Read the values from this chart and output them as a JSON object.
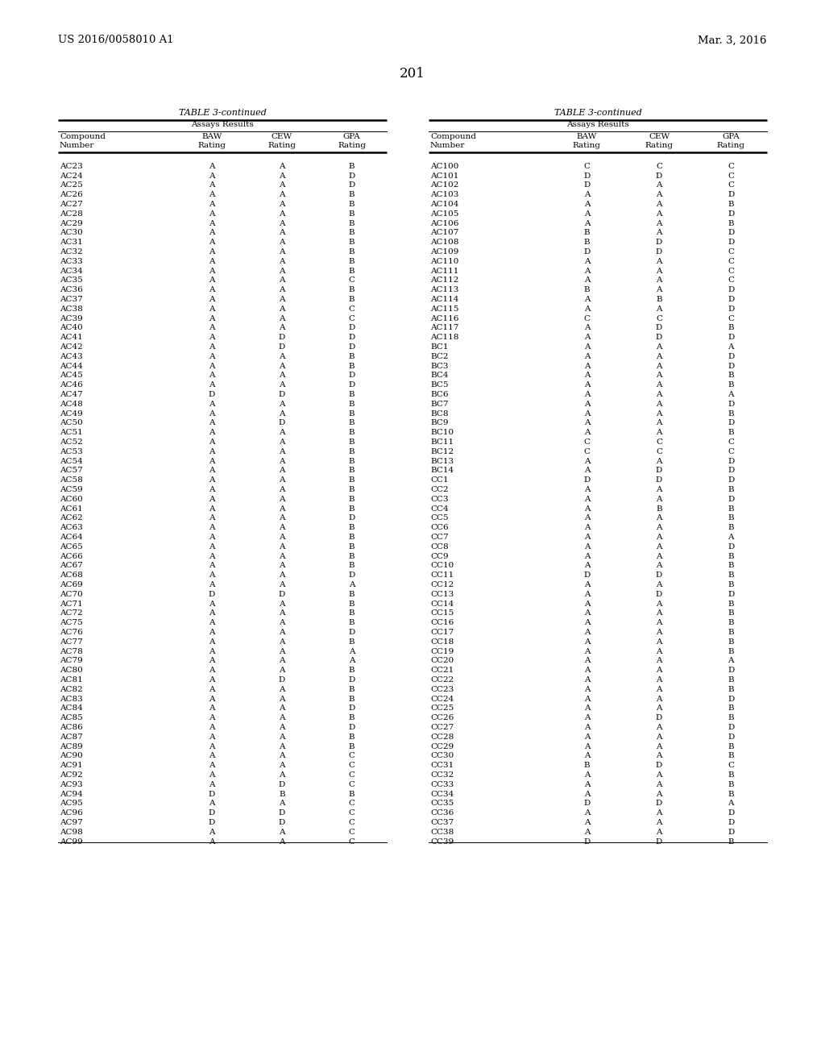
{
  "header_left": "US 2016/0058010 A1",
  "header_right": "Mar. 3, 2016",
  "page_number": "201",
  "table_title": "TABLE 3-continued",
  "col_headers": [
    "Compound\nNumber",
    "BAW\nRating",
    "CEW\nRating",
    "GPA\nRating"
  ],
  "assays_results": "Assays Results",
  "left_data": [
    [
      "AC23",
      "A",
      "A",
      "B"
    ],
    [
      "AC24",
      "A",
      "A",
      "D"
    ],
    [
      "AC25",
      "A",
      "A",
      "D"
    ],
    [
      "AC26",
      "A",
      "A",
      "B"
    ],
    [
      "AC27",
      "A",
      "A",
      "B"
    ],
    [
      "AC28",
      "A",
      "A",
      "B"
    ],
    [
      "AC29",
      "A",
      "A",
      "B"
    ],
    [
      "AC30",
      "A",
      "A",
      "B"
    ],
    [
      "AC31",
      "A",
      "A",
      "B"
    ],
    [
      "AC32",
      "A",
      "A",
      "B"
    ],
    [
      "AC33",
      "A",
      "A",
      "B"
    ],
    [
      "AC34",
      "A",
      "A",
      "B"
    ],
    [
      "AC35",
      "A",
      "A",
      "C"
    ],
    [
      "AC36",
      "A",
      "A",
      "B"
    ],
    [
      "AC37",
      "A",
      "A",
      "B"
    ],
    [
      "AC38",
      "A",
      "A",
      "C"
    ],
    [
      "AC39",
      "A",
      "A",
      "C"
    ],
    [
      "AC40",
      "A",
      "A",
      "D"
    ],
    [
      "AC41",
      "A",
      "D",
      "D"
    ],
    [
      "AC42",
      "A",
      "D",
      "D"
    ],
    [
      "AC43",
      "A",
      "A",
      "B"
    ],
    [
      "AC44",
      "A",
      "A",
      "B"
    ],
    [
      "AC45",
      "A",
      "A",
      "D"
    ],
    [
      "AC46",
      "A",
      "A",
      "D"
    ],
    [
      "AC47",
      "D",
      "D",
      "B"
    ],
    [
      "AC48",
      "A",
      "A",
      "B"
    ],
    [
      "AC49",
      "A",
      "A",
      "B"
    ],
    [
      "AC50",
      "A",
      "D",
      "B"
    ],
    [
      "AC51",
      "A",
      "A",
      "B"
    ],
    [
      "AC52",
      "A",
      "A",
      "B"
    ],
    [
      "AC53",
      "A",
      "A",
      "B"
    ],
    [
      "AC54",
      "A",
      "A",
      "B"
    ],
    [
      "AC57",
      "A",
      "A",
      "B"
    ],
    [
      "AC58",
      "A",
      "A",
      "B"
    ],
    [
      "AC59",
      "A",
      "A",
      "B"
    ],
    [
      "AC60",
      "A",
      "A",
      "B"
    ],
    [
      "AC61",
      "A",
      "A",
      "B"
    ],
    [
      "AC62",
      "A",
      "A",
      "D"
    ],
    [
      "AC63",
      "A",
      "A",
      "B"
    ],
    [
      "AC64",
      "A",
      "A",
      "B"
    ],
    [
      "AC65",
      "A",
      "A",
      "B"
    ],
    [
      "AC66",
      "A",
      "A",
      "B"
    ],
    [
      "AC67",
      "A",
      "A",
      "B"
    ],
    [
      "AC68",
      "A",
      "A",
      "D"
    ],
    [
      "AC69",
      "A",
      "A",
      "A"
    ],
    [
      "AC70",
      "D",
      "D",
      "B"
    ],
    [
      "AC71",
      "A",
      "A",
      "B"
    ],
    [
      "AC72",
      "A",
      "A",
      "B"
    ],
    [
      "AC75",
      "A",
      "A",
      "B"
    ],
    [
      "AC76",
      "A",
      "A",
      "D"
    ],
    [
      "AC77",
      "A",
      "A",
      "B"
    ],
    [
      "AC78",
      "A",
      "A",
      "A"
    ],
    [
      "AC79",
      "A",
      "A",
      "A"
    ],
    [
      "AC80",
      "A",
      "A",
      "B"
    ],
    [
      "AC81",
      "A",
      "D",
      "D"
    ],
    [
      "AC82",
      "A",
      "A",
      "B"
    ],
    [
      "AC83",
      "A",
      "A",
      "B"
    ],
    [
      "AC84",
      "A",
      "A",
      "D"
    ],
    [
      "AC85",
      "A",
      "A",
      "B"
    ],
    [
      "AC86",
      "A",
      "A",
      "D"
    ],
    [
      "AC87",
      "A",
      "A",
      "B"
    ],
    [
      "AC89",
      "A",
      "A",
      "B"
    ],
    [
      "AC90",
      "A",
      "A",
      "C"
    ],
    [
      "AC91",
      "A",
      "A",
      "C"
    ],
    [
      "AC92",
      "A",
      "A",
      "C"
    ],
    [
      "AC93",
      "A",
      "D",
      "C"
    ],
    [
      "AC94",
      "D",
      "B",
      "B"
    ],
    [
      "AC95",
      "A",
      "A",
      "C"
    ],
    [
      "AC96",
      "D",
      "D",
      "C"
    ],
    [
      "AC97",
      "D",
      "D",
      "C"
    ],
    [
      "AC98",
      "A",
      "A",
      "C"
    ],
    [
      "AC99",
      "A",
      "A",
      "C"
    ]
  ],
  "right_data": [
    [
      "AC100",
      "C",
      "C",
      "C"
    ],
    [
      "AC101",
      "D",
      "D",
      "C"
    ],
    [
      "AC102",
      "D",
      "A",
      "C"
    ],
    [
      "AC103",
      "A",
      "A",
      "D"
    ],
    [
      "AC104",
      "A",
      "A",
      "B"
    ],
    [
      "AC105",
      "A",
      "A",
      "D"
    ],
    [
      "AC106",
      "A",
      "A",
      "B"
    ],
    [
      "AC107",
      "B",
      "A",
      "D"
    ],
    [
      "AC108",
      "B",
      "D",
      "D"
    ],
    [
      "AC109",
      "D",
      "D",
      "C"
    ],
    [
      "AC110",
      "A",
      "A",
      "C"
    ],
    [
      "AC111",
      "A",
      "A",
      "C"
    ],
    [
      "AC112",
      "A",
      "A",
      "C"
    ],
    [
      "AC113",
      "B",
      "A",
      "D"
    ],
    [
      "AC114",
      "A",
      "B",
      "D"
    ],
    [
      "AC115",
      "A",
      "A",
      "D"
    ],
    [
      "AC116",
      "C",
      "C",
      "C"
    ],
    [
      "AC117",
      "A",
      "D",
      "B"
    ],
    [
      "AC118",
      "A",
      "D",
      "D"
    ],
    [
      "BC1",
      "A",
      "A",
      "A"
    ],
    [
      "BC2",
      "A",
      "A",
      "D"
    ],
    [
      "BC3",
      "A",
      "A",
      "D"
    ],
    [
      "BC4",
      "A",
      "A",
      "B"
    ],
    [
      "BC5",
      "A",
      "A",
      "B"
    ],
    [
      "BC6",
      "A",
      "A",
      "A"
    ],
    [
      "BC7",
      "A",
      "A",
      "D"
    ],
    [
      "BC8",
      "A",
      "A",
      "B"
    ],
    [
      "BC9",
      "A",
      "A",
      "D"
    ],
    [
      "BC10",
      "A",
      "A",
      "B"
    ],
    [
      "BC11",
      "C",
      "C",
      "C"
    ],
    [
      "BC12",
      "C",
      "C",
      "C"
    ],
    [
      "BC13",
      "A",
      "A",
      "D"
    ],
    [
      "BC14",
      "A",
      "D",
      "D"
    ],
    [
      "CC1",
      "D",
      "D",
      "D"
    ],
    [
      "CC2",
      "A",
      "A",
      "B"
    ],
    [
      "CC3",
      "A",
      "A",
      "D"
    ],
    [
      "CC4",
      "A",
      "B",
      "B"
    ],
    [
      "CC5",
      "A",
      "A",
      "B"
    ],
    [
      "CC6",
      "A",
      "A",
      "B"
    ],
    [
      "CC7",
      "A",
      "A",
      "A"
    ],
    [
      "CC8",
      "A",
      "A",
      "D"
    ],
    [
      "CC9",
      "A",
      "A",
      "B"
    ],
    [
      "CC10",
      "A",
      "A",
      "B"
    ],
    [
      "CC11",
      "D",
      "D",
      "B"
    ],
    [
      "CC12",
      "A",
      "A",
      "B"
    ],
    [
      "CC13",
      "A",
      "D",
      "D"
    ],
    [
      "CC14",
      "A",
      "A",
      "B"
    ],
    [
      "CC15",
      "A",
      "A",
      "B"
    ],
    [
      "CC16",
      "A",
      "A",
      "B"
    ],
    [
      "CC17",
      "A",
      "A",
      "B"
    ],
    [
      "CC18",
      "A",
      "A",
      "B"
    ],
    [
      "CC19",
      "A",
      "A",
      "B"
    ],
    [
      "CC20",
      "A",
      "A",
      "A"
    ],
    [
      "CC21",
      "A",
      "A",
      "D"
    ],
    [
      "CC22",
      "A",
      "A",
      "B"
    ],
    [
      "CC23",
      "A",
      "A",
      "B"
    ],
    [
      "CC24",
      "A",
      "A",
      "D"
    ],
    [
      "CC25",
      "A",
      "A",
      "B"
    ],
    [
      "CC26",
      "A",
      "D",
      "B"
    ],
    [
      "CC27",
      "A",
      "A",
      "D"
    ],
    [
      "CC28",
      "A",
      "A",
      "D"
    ],
    [
      "CC29",
      "A",
      "A",
      "B"
    ],
    [
      "CC30",
      "A",
      "A",
      "B"
    ],
    [
      "CC31",
      "B",
      "D",
      "C"
    ],
    [
      "CC32",
      "A",
      "A",
      "B"
    ],
    [
      "CC33",
      "A",
      "A",
      "B"
    ],
    [
      "CC34",
      "A",
      "A",
      "B"
    ],
    [
      "CC35",
      "D",
      "D",
      "A"
    ],
    [
      "CC36",
      "A",
      "A",
      "D"
    ],
    [
      "CC37",
      "A",
      "A",
      "D"
    ],
    [
      "CC38",
      "A",
      "A",
      "D"
    ],
    [
      "CC39",
      "D",
      "D",
      "B"
    ]
  ]
}
